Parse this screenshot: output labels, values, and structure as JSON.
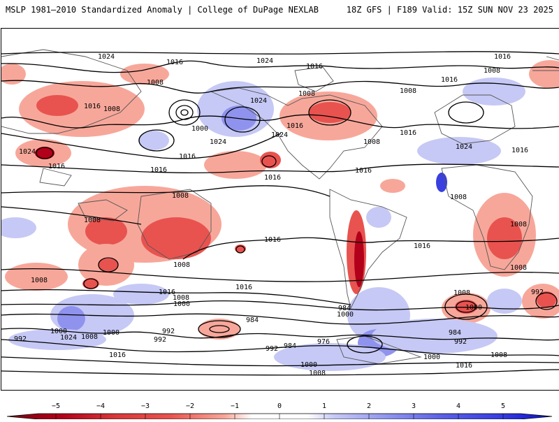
{
  "header": {
    "title_left": "MSLP 1981–2010 Standardized Anomaly | College of DuPage NEXLAB",
    "title_right": "18Z GFS | F189 Valid: 15Z SUN NOV 23 2025"
  },
  "colors": {
    "neg_strong": "#b2001a",
    "neg_mid": "#e8534f",
    "neg_light": "#f7a79a",
    "pos_light": "#c6c9f5",
    "pos_mid": "#8f93ee",
    "pos_strong": "#3a3fe0",
    "contour": "#000000",
    "land": "#555555"
  },
  "contour_labels": [
    "1024",
    "1016",
    "1016",
    "1016",
    "1008",
    "1008",
    "1024",
    "1000",
    "1016",
    "1024",
    "1016",
    "1008",
    "1016",
    "1008",
    "1008",
    "1024",
    "1016",
    "1024",
    "1016",
    "1016",
    "1016",
    "1024",
    "1016",
    "1008",
    "1008",
    "1016",
    "1008",
    "1008",
    "1008",
    "1008",
    "1016",
    "1016",
    "1016",
    "1008",
    "1016",
    "1000",
    "1000",
    "984",
    "1008",
    "1000",
    "984",
    "992",
    "992",
    "1024",
    "1008",
    "992",
    "1000",
    "992",
    "976",
    "984",
    "992",
    "1000",
    "1016",
    "1008",
    "1000",
    "1008",
    "1016",
    "984",
    "992",
    "1008",
    "1000",
    "1008",
    "1024",
    "1016"
  ],
  "colorbar": {
    "ticks": [
      "−5",
      "−4",
      "−3",
      "−2",
      "−1",
      "0",
      "1",
      "2",
      "3",
      "4",
      "5"
    ],
    "min": -5,
    "max": 5
  }
}
